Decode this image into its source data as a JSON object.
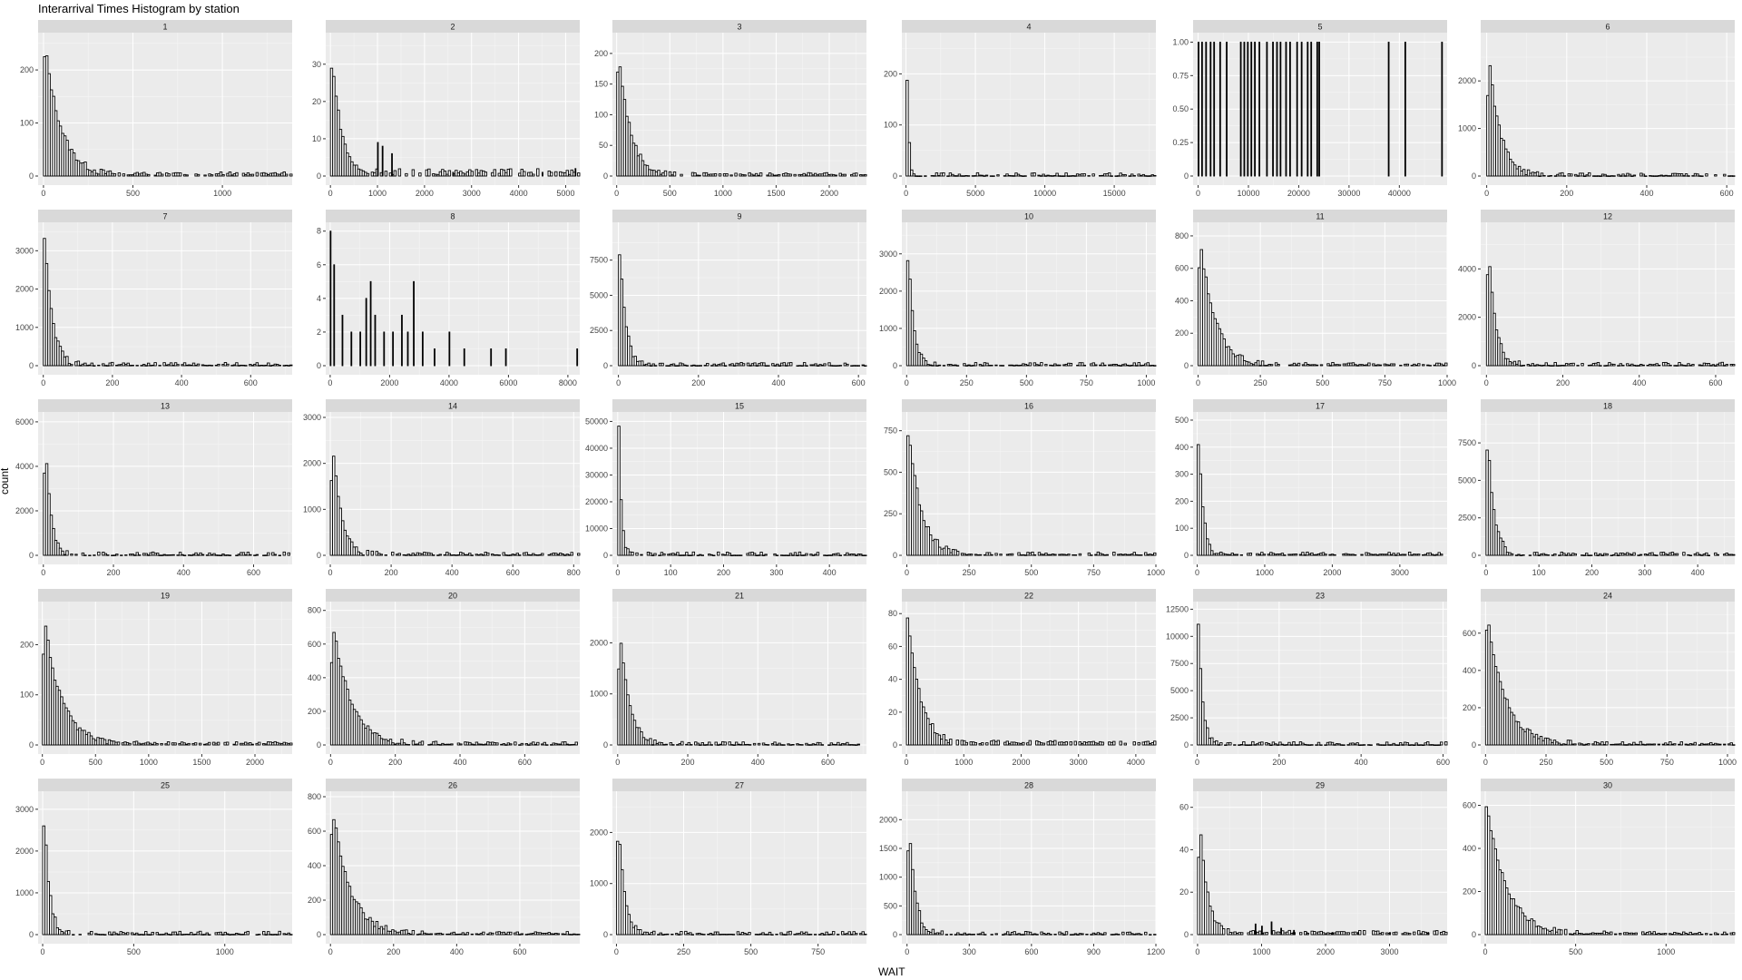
{
  "title": "Interarrival Times Histogram by station",
  "xlabel": "WAIT",
  "ylabel": "count",
  "colors": {
    "panel": "#ebebeb",
    "strip": "#d9d9d9",
    "grid": "#ffffff",
    "bar_fill": "#ffffff",
    "bar_outline": "#000000"
  },
  "chart_data": [
    {
      "type": "bar",
      "station": "1",
      "xlim": [
        -30,
        1390
      ],
      "xticks": [
        0,
        500,
        1000
      ],
      "ylim": [
        0,
        260
      ],
      "yticks": [
        0,
        100,
        200
      ],
      "decay": 90,
      "peak": 255,
      "tail": 8,
      "spikes": []
    },
    {
      "type": "bar",
      "station": "2",
      "xlim": [
        -100,
        5300
      ],
      "xticks": [
        0,
        1000,
        2000,
        3000,
        4000,
        5000
      ],
      "ylim": [
        0,
        37
      ],
      "yticks": [
        0,
        10,
        20,
        30
      ],
      "decay": 200,
      "peak": 35,
      "tail": 2,
      "spikes": [
        [
          1000,
          9
        ],
        [
          1100,
          8
        ],
        [
          1300,
          6
        ],
        [
          2600,
          1
        ],
        [
          4500,
          1
        ],
        [
          5200,
          2
        ]
      ]
    },
    {
      "type": "bar",
      "station": "3",
      "xlim": [
        -40,
        2350
      ],
      "xticks": [
        0,
        500,
        1000,
        1500,
        2000
      ],
      "ylim": [
        0,
        225
      ],
      "yticks": [
        0,
        50,
        100,
        150,
        200
      ],
      "decay": 110,
      "peak": 220,
      "tail": 5,
      "spikes": []
    },
    {
      "type": "bar",
      "station": "4",
      "xlim": [
        -300,
        18000
      ],
      "xticks": [
        0,
        5000,
        10000,
        15000
      ],
      "ylim": [
        0,
        270
      ],
      "yticks": [
        0,
        100,
        200
      ],
      "decay": 120,
      "peak": 262,
      "tail": 1,
      "spikes": []
    },
    {
      "type": "bar",
      "station": "5",
      "xlim": [
        -1000,
        49500
      ],
      "xticks": [
        0,
        10000,
        20000,
        30000,
        40000,
        50000
      ],
      "ylim": [
        0,
        1.03
      ],
      "yticks": [
        0,
        0.25,
        0.5,
        0.75,
        1
      ],
      "decay": 0,
      "peak": 0,
      "tail": 0,
      "spikes": [
        [
          0,
          1
        ],
        [
          700,
          1
        ],
        [
          1500,
          1
        ],
        [
          2400,
          1
        ],
        [
          3100,
          1
        ],
        [
          4300,
          1
        ],
        [
          5600,
          1
        ],
        [
          8400,
          1
        ],
        [
          9100,
          1
        ],
        [
          9800,
          1
        ],
        [
          10500,
          1
        ],
        [
          11200,
          1
        ],
        [
          12100,
          1
        ],
        [
          13600,
          1
        ],
        [
          14800,
          1
        ],
        [
          15600,
          1
        ],
        [
          16300,
          1
        ],
        [
          17400,
          1
        ],
        [
          18200,
          1
        ],
        [
          19600,
          1
        ],
        [
          20500,
          1
        ],
        [
          21700,
          1
        ],
        [
          22400,
          1
        ],
        [
          23600,
          1
        ],
        [
          24000,
          1
        ],
        [
          37800,
          1
        ],
        [
          41100,
          1
        ],
        [
          48400,
          1
        ]
      ]
    },
    {
      "type": "bar",
      "station": "6",
      "xlim": [
        -15,
        620
      ],
      "xticks": [
        0,
        200,
        400,
        600
      ],
      "ylim": [
        0,
        2900
      ],
      "yticks": [
        0,
        1000,
        2000
      ],
      "decay": 28,
      "peak": 2800,
      "tail": 10,
      "spikes": []
    },
    {
      "type": "bar",
      "station": "7",
      "xlim": [
        -15,
        720
      ],
      "xticks": [
        0,
        200,
        400,
        600
      ],
      "ylim": [
        0,
        3600
      ],
      "yticks": [
        0,
        1000,
        2000,
        3000
      ],
      "decay": 22,
      "peak": 3500,
      "tail": 15,
      "spikes": []
    },
    {
      "type": "bar",
      "station": "8",
      "xlim": [
        -150,
        8400
      ],
      "xticks": [
        0,
        2000,
        4000,
        6000,
        8000
      ],
      "ylim": [
        0,
        8.2
      ],
      "yticks": [
        0,
        2,
        4,
        6,
        8
      ],
      "decay": 0,
      "peak": 0,
      "tail": 0,
      "spikes": [
        [
          0,
          8
        ],
        [
          120,
          6
        ],
        [
          400,
          3
        ],
        [
          700,
          2
        ],
        [
          1000,
          2
        ],
        [
          1200,
          4
        ],
        [
          1350,
          5
        ],
        [
          1500,
          3
        ],
        [
          1800,
          2
        ],
        [
          2100,
          2
        ],
        [
          2400,
          3
        ],
        [
          2600,
          2
        ],
        [
          2800,
          5
        ],
        [
          3100,
          2
        ],
        [
          3500,
          1
        ],
        [
          4000,
          2
        ],
        [
          4500,
          1
        ],
        [
          5400,
          1
        ],
        [
          5900,
          1
        ],
        [
          8300,
          1
        ]
      ]
    },
    {
      "type": "bar",
      "station": "9",
      "xlim": [
        -15,
        620
      ],
      "xticks": [
        0,
        200,
        400,
        600
      ],
      "ylim": [
        0,
        9800
      ],
      "yticks": [
        0,
        2500,
        5000,
        7500
      ],
      "decay": 14,
      "peak": 9400,
      "tail": 20,
      "spikes": []
    },
    {
      "type": "bar",
      "station": "10",
      "xlim": [
        -20,
        1040
      ],
      "xticks": [
        0,
        250,
        500,
        750,
        1000
      ],
      "ylim": [
        0,
        3700
      ],
      "yticks": [
        0,
        1000,
        2000,
        3000
      ],
      "decay": 22,
      "peak": 3600,
      "tail": 20,
      "spikes": []
    },
    {
      "type": "bar",
      "station": "11",
      "xlim": [
        -20,
        1000
      ],
      "xticks": [
        0,
        250,
        500,
        750,
        1000
      ],
      "ylim": [
        0,
        850
      ],
      "yticks": [
        0,
        200,
        400,
        600,
        800
      ],
      "decay": 60,
      "peak": 830,
      "tail": 8,
      "spikes": []
    },
    {
      "type": "bar",
      "station": "12",
      "xlim": [
        -15,
        650
      ],
      "xticks": [
        0,
        200,
        400,
        600
      ],
      "ylim": [
        0,
        5700
      ],
      "yticks": [
        0,
        2000,
        4000
      ],
      "decay": 18,
      "peak": 5600,
      "tail": 20,
      "spikes": []
    },
    {
      "type": "bar",
      "station": "13",
      "xlim": [
        -15,
        710
      ],
      "xticks": [
        0,
        200,
        400,
        600
      ],
      "ylim": [
        0,
        6200
      ],
      "yticks": [
        0,
        2000,
        4000,
        6000
      ],
      "decay": 16,
      "peak": 6000,
      "tail": 20,
      "spikes": []
    },
    {
      "type": "bar",
      "station": "14",
      "xlim": [
        -15,
        820
      ],
      "xticks": [
        0,
        200,
        400,
        600,
        800
      ],
      "ylim": [
        0,
        3000
      ],
      "yticks": [
        0,
        1000,
        2000,
        3000
      ],
      "decay": 28,
      "peak": 2900,
      "tail": 15,
      "spikes": []
    },
    {
      "type": "bar",
      "station": "15",
      "xlim": [
        -10,
        470
      ],
      "xticks": [
        0,
        100,
        200,
        300,
        400
      ],
      "ylim": [
        0,
        51500
      ],
      "yticks": [
        0,
        10000,
        20000,
        30000,
        40000,
        50000
      ],
      "decay": 5,
      "peak": 50500,
      "tail": 100,
      "spikes": []
    },
    {
      "type": "bar",
      "station": "16",
      "xlim": [
        -20,
        1000
      ],
      "xticks": [
        0,
        250,
        500,
        750,
        1000
      ],
      "ylim": [
        0,
        830
      ],
      "yticks": [
        0,
        250,
        500,
        750
      ],
      "decay": 50,
      "peak": 800,
      "tail": 8,
      "spikes": []
    },
    {
      "type": "bar",
      "station": "17",
      "xlim": [
        -60,
        3700
      ],
      "xticks": [
        0,
        1000,
        2000,
        3000
      ],
      "ylim": [
        0,
        510
      ],
      "yticks": [
        0,
        100,
        200,
        300,
        400,
        500
      ],
      "decay": 70,
      "peak": 485,
      "tail": 5,
      "spikes": []
    },
    {
      "type": "bar",
      "station": "18",
      "xlim": [
        -10,
        470
      ],
      "xticks": [
        0,
        100,
        200,
        300,
        400
      ],
      "ylim": [
        0,
        9200
      ],
      "yticks": [
        0,
        2500,
        5000,
        7500
      ],
      "decay": 12,
      "peak": 8900,
      "tail": 20,
      "spikes": []
    },
    {
      "type": "bar",
      "station": "19",
      "xlim": [
        -40,
        2350
      ],
      "xticks": [
        0,
        500,
        1000,
        1500,
        2000
      ],
      "ylim": [
        0,
        275
      ],
      "yticks": [
        0,
        100,
        200
      ],
      "decay": 160,
      "peak": 265,
      "tail": 6,
      "spikes": []
    },
    {
      "type": "bar",
      "station": "20",
      "xlim": [
        -15,
        770
      ],
      "xticks": [
        0,
        200,
        400,
        600
      ],
      "ylim": [
        0,
        820
      ],
      "yticks": [
        0,
        200,
        400,
        600,
        800
      ],
      "decay": 55,
      "peak": 780,
      "tail": 6,
      "spikes": []
    },
    {
      "type": "bar",
      "station": "21",
      "xlim": [
        -15,
        710
      ],
      "xticks": [
        0,
        200,
        400,
        600
      ],
      "ylim": [
        0,
        2700
      ],
      "yticks": [
        0,
        1000,
        2000
      ],
      "decay": 26,
      "peak": 2600,
      "tail": 10,
      "spikes": []
    },
    {
      "type": "bar",
      "station": "22",
      "xlim": [
        -80,
        4350
      ],
      "xticks": [
        0,
        1000,
        2000,
        3000,
        4000
      ],
      "ylim": [
        0,
        84
      ],
      "yticks": [
        0,
        20,
        40,
        60,
        80
      ],
      "decay": 220,
      "peak": 80,
      "tail": 3,
      "spikes": []
    },
    {
      "type": "bar",
      "station": "23",
      "xlim": [
        -10,
        610
      ],
      "xticks": [
        0,
        200,
        400,
        600
      ],
      "ylim": [
        0,
        12700
      ],
      "yticks": [
        0,
        2500,
        5000,
        7500,
        10000,
        12500
      ],
      "decay": 10,
      "peak": 12200,
      "tail": 30,
      "spikes": []
    },
    {
      "type": "bar",
      "station": "24",
      "xlim": [
        -20,
        1030
      ],
      "xticks": [
        0,
        250,
        500,
        750,
        1000
      ],
      "ylim": [
        0,
        740
      ],
      "yticks": [
        0,
        200,
        400,
        600
      ],
      "decay": 75,
      "peak": 720,
      "tail": 6,
      "spikes": []
    },
    {
      "type": "bar",
      "station": "25",
      "xlim": [
        -25,
        1370
      ],
      "xticks": [
        0,
        500,
        1000
      ],
      "ylim": [
        0,
        3300
      ],
      "yticks": [
        0,
        1000,
        2000,
        3000
      ],
      "decay": 28,
      "peak": 3250,
      "tail": 10,
      "spikes": []
    },
    {
      "type": "bar",
      "station": "26",
      "xlim": [
        -15,
        790
      ],
      "xticks": [
        0,
        200,
        400,
        600,
        800
      ],
      "ylim": [
        0,
        800
      ],
      "yticks": [
        0,
        200,
        400,
        600,
        800
      ],
      "decay": 55,
      "peak": 780,
      "tail": 6,
      "spikes": []
    },
    {
      "type": "bar",
      "station": "27",
      "xlim": [
        -15,
        930
      ],
      "xticks": [
        0,
        250,
        500,
        750
      ],
      "ylim": [
        0,
        2700
      ],
      "yticks": [
        0,
        1000,
        2000
      ],
      "decay": 22,
      "peak": 2650,
      "tail": 10,
      "spikes": []
    },
    {
      "type": "bar",
      "station": "28",
      "xlim": [
        -25,
        1200
      ],
      "xticks": [
        0,
        300,
        600,
        900,
        1200
      ],
      "ylim": [
        0,
        2400
      ],
      "yticks": [
        0,
        500,
        1000,
        1500,
        2000
      ],
      "decay": 30,
      "peak": 2300,
      "tail": 8,
      "spikes": []
    },
    {
      "type": "bar",
      "station": "29",
      "xlim": [
        -70,
        3900
      ],
      "xticks": [
        0,
        1000,
        2000,
        3000,
        4000
      ],
      "ylim": [
        0,
        65
      ],
      "yticks": [
        0,
        20,
        40,
        60
      ],
      "decay": 120,
      "peak": 63,
      "tail": 2,
      "spikes": [
        [
          900,
          5
        ],
        [
          1000,
          4
        ],
        [
          1150,
          6
        ],
        [
          1300,
          3
        ],
        [
          1500,
          2
        ],
        [
          1700,
          1
        ],
        [
          2100,
          1
        ],
        [
          2500,
          1
        ],
        [
          3000,
          1
        ],
        [
          3600,
          1
        ]
      ]
    },
    {
      "type": "bar",
      "station": "30",
      "xlim": [
        -25,
        1380
      ],
      "xticks": [
        0,
        500,
        1000
      ],
      "ylim": [
        0,
        640
      ],
      "yticks": [
        0,
        200,
        400,
        600
      ],
      "decay": 110,
      "peak": 610,
      "tail": 8,
      "spikes": []
    }
  ]
}
